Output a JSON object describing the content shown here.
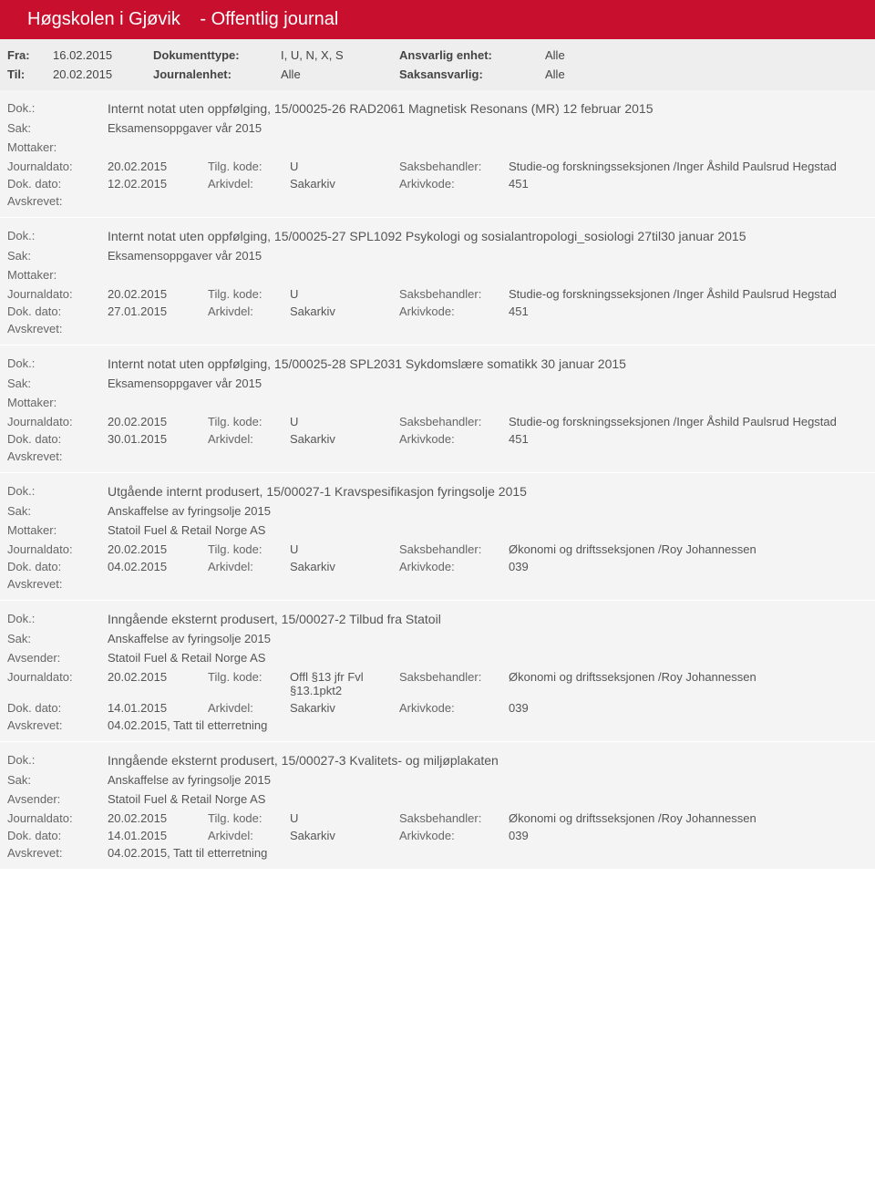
{
  "header": {
    "title": "Høgskolen i Gjøvik",
    "subtitle": "- Offentlig journal"
  },
  "filters": {
    "fra_label": "Fra:",
    "fra_value": "16.02.2015",
    "til_label": "Til:",
    "til_value": "20.02.2015",
    "doktype_label": "Dokumenttype:",
    "doktype_value": "I, U, N, X, S",
    "journalenhet_label": "Journalenhet:",
    "journalenhet_value": "Alle",
    "ansvarlig_label": "Ansvarlig enhet:",
    "ansvarlig_value": "Alle",
    "saksansvarlig_label": "Saksansvarlig:",
    "saksansvarlig_value": "Alle"
  },
  "labels": {
    "dok": "Dok.:",
    "sak": "Sak:",
    "mottaker": "Mottaker:",
    "avsender": "Avsender:",
    "journaldato": "Journaldato:",
    "tilgkode": "Tilg. kode:",
    "saksbehandler": "Saksbehandler:",
    "dokdato": "Dok. dato:",
    "arkivdel": "Arkivdel:",
    "arkivkode": "Arkivkode:",
    "avskrevet": "Avskrevet:"
  },
  "entries": [
    {
      "dok": "Internt notat uten oppfølging, 15/00025-26 RAD2061 Magnetisk Resonans (MR) 12 februar 2015",
      "sak": "Eksamensoppgaver vår 2015",
      "partyLabel": "Mottaker:",
      "party": "",
      "journaldato": "20.02.2015",
      "tilgkode": "U",
      "saksbehandler": "Studie-og forskningsseksjonen /Inger Åshild Paulsrud Hegstad",
      "dokdato": "12.02.2015",
      "arkivdel": "Sakarkiv",
      "arkivkode": "451",
      "avskrevet": ""
    },
    {
      "dok": "Internt notat uten oppfølging, 15/00025-27 SPL1092 Psykologi og sosialantropologi_sosiologi 27til30 januar 2015",
      "sak": "Eksamensoppgaver vår 2015",
      "partyLabel": "Mottaker:",
      "party": "",
      "journaldato": "20.02.2015",
      "tilgkode": "U",
      "saksbehandler": "Studie-og forskningsseksjonen /Inger Åshild Paulsrud Hegstad",
      "dokdato": "27.01.2015",
      "arkivdel": "Sakarkiv",
      "arkivkode": "451",
      "avskrevet": ""
    },
    {
      "dok": "Internt notat uten oppfølging, 15/00025-28 SPL2031 Sykdomslære somatikk 30 januar 2015",
      "sak": "Eksamensoppgaver vår 2015",
      "partyLabel": "Mottaker:",
      "party": "",
      "journaldato": "20.02.2015",
      "tilgkode": "U",
      "saksbehandler": "Studie-og forskningsseksjonen /Inger Åshild Paulsrud Hegstad",
      "dokdato": "30.01.2015",
      "arkivdel": "Sakarkiv",
      "arkivkode": "451",
      "avskrevet": ""
    },
    {
      "dok": "Utgående internt produsert, 15/00027-1 Kravspesifikasjon fyringsolje 2015",
      "sak": "Anskaffelse av fyringsolje 2015",
      "partyLabel": "Mottaker:",
      "party": "Statoil Fuel & Retail Norge AS",
      "journaldato": "20.02.2015",
      "tilgkode": "U",
      "saksbehandler": "Økonomi og driftsseksjonen /Roy Johannessen",
      "dokdato": "04.02.2015",
      "arkivdel": "Sakarkiv",
      "arkivkode": "039",
      "avskrevet": ""
    },
    {
      "dok": "Inngående eksternt produsert, 15/00027-2 Tilbud fra Statoil",
      "sak": "Anskaffelse av fyringsolje 2015",
      "partyLabel": "Avsender:",
      "party": "Statoil Fuel & Retail Norge AS",
      "journaldato": "20.02.2015",
      "tilgkode": "Offl §13 jfr Fvl §13.1pkt2",
      "saksbehandler": "Økonomi og driftsseksjonen /Roy Johannessen",
      "dokdato": "14.01.2015",
      "arkivdel": "Sakarkiv",
      "arkivkode": "039",
      "avskrevet": "04.02.2015, Tatt til etterretning"
    },
    {
      "dok": "Inngående eksternt produsert, 15/00027-3 Kvalitets- og miljøplakaten",
      "sak": "Anskaffelse av fyringsolje 2015",
      "partyLabel": "Avsender:",
      "party": "Statoil Fuel & Retail Norge AS",
      "journaldato": "20.02.2015",
      "tilgkode": "U",
      "saksbehandler": "Økonomi og driftsseksjonen /Roy Johannessen",
      "dokdato": "14.01.2015",
      "arkivdel": "Sakarkiv",
      "arkivkode": "039",
      "avskrevet": "04.02.2015, Tatt til etterretning"
    }
  ]
}
